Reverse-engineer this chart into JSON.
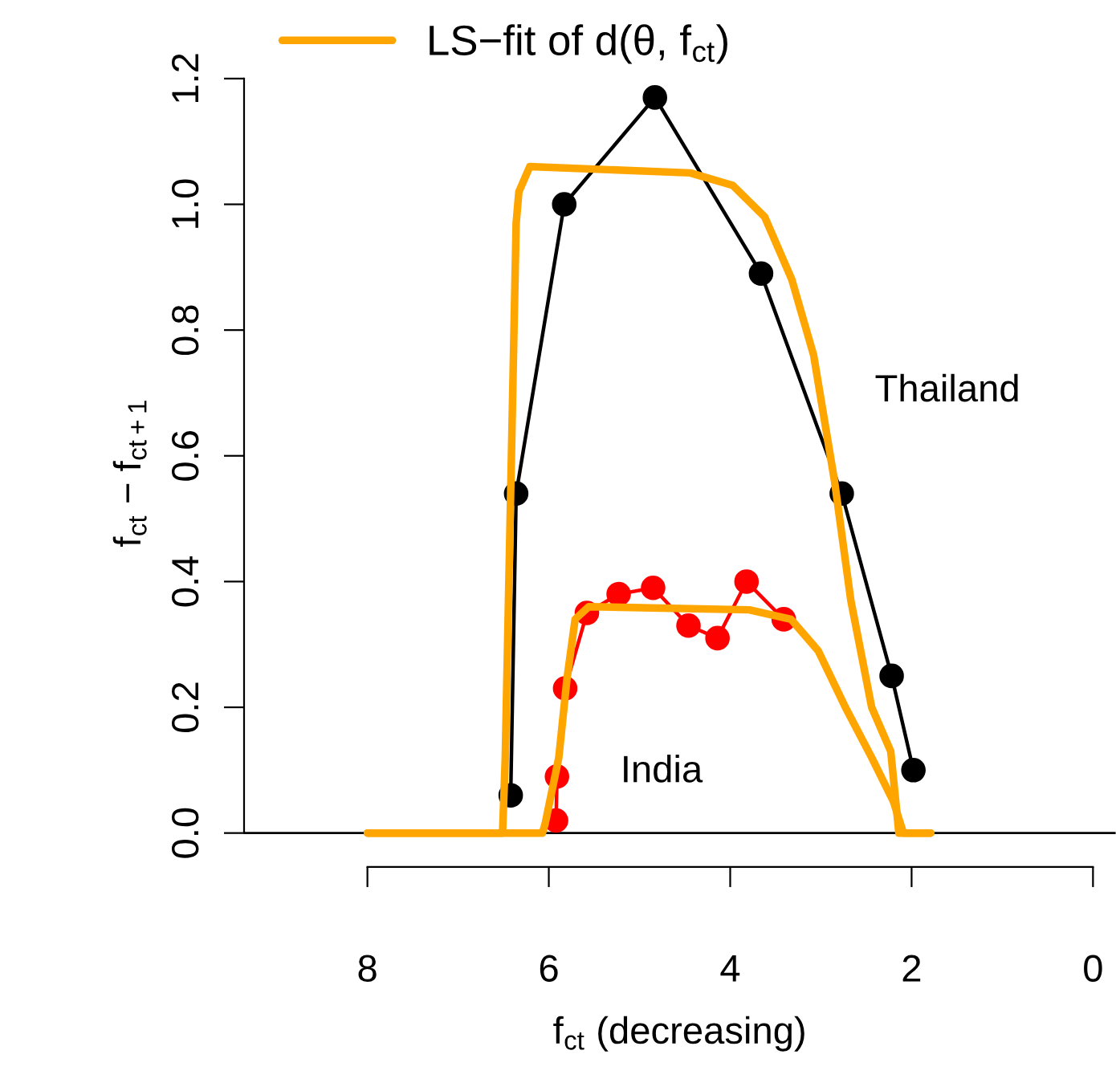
{
  "chart_data": {
    "type": "line",
    "xlabel": "f$_{ct}$ (decreasing)",
    "ylabel": "f$_{ct}$ − f$_{ct+1}$",
    "xlim": [
      9.36,
      -0.25
    ],
    "ylim": [
      -0.054,
      1.2
    ],
    "xticks": [
      8,
      6,
      4,
      2,
      0
    ],
    "yticks": [
      {
        "value": 0,
        "label": "0.0"
      },
      0.2,
      0.4,
      0.6,
      0.8,
      {
        "value": 1,
        "label": "1.0"
      },
      1.2
    ],
    "grid": false,
    "legend": "top left",
    "line_style": "solid",
    "ref_lines": [
      {
        "axis": "y",
        "value": 0,
        "color": "#000000"
      }
    ],
    "series": [
      {
        "name": "Thailand",
        "color": "#000000",
        "marker": "circle",
        "x": [
          6.42,
          6.36,
          5.83,
          4.83,
          3.66,
          2.77,
          2.22,
          1.98
        ],
        "values": [
          0.06,
          0.54,
          1.0,
          1.17,
          0.89,
          0.54,
          0.25,
          0.1
        ]
      },
      {
        "name": "India",
        "color": "#ff0000",
        "marker": "circle",
        "x": [
          5.92,
          5.91,
          5.82,
          5.58,
          5.23,
          4.85,
          4.46,
          4.14,
          3.82,
          3.41
        ],
        "values": [
          0.02,
          0.09,
          0.23,
          0.35,
          0.38,
          0.39,
          0.33,
          0.31,
          0.4,
          0.34
        ]
      },
      {
        "name": "LS−fit of d(θ, f$_{ct}$)",
        "color": "#ffa500",
        "marker": "none",
        "x": [
          8,
          6.51,
          6.48,
          6.36,
          6.33,
          6.21,
          4.44,
          3.97,
          3.62,
          3.32,
          3.08,
          2.85,
          2.67,
          2.44,
          2.23,
          2.14,
          1.79
        ],
        "values": [
          0,
          0,
          0.12,
          0.97,
          1.02,
          1.06,
          1.05,
          1.03,
          0.98,
          0.88,
          0.76,
          0.56,
          0.37,
          0.2,
          0.13,
          0,
          0
        ]
      },
      {
        "color": "#ffa500",
        "marker": "none",
        "x": [
          8,
          6.07,
          6.04,
          5.89,
          5.8,
          5.71,
          5.56,
          3.79,
          3.33,
          3.03,
          2.73,
          2.44,
          2.2,
          2.09,
          1.79
        ],
        "values": [
          0,
          0,
          0.015,
          0.12,
          0.245,
          0.34,
          0.36,
          0.355,
          0.34,
          0.29,
          0.2,
          0.12,
          0.05,
          0,
          0
        ]
      }
    ]
  }
}
